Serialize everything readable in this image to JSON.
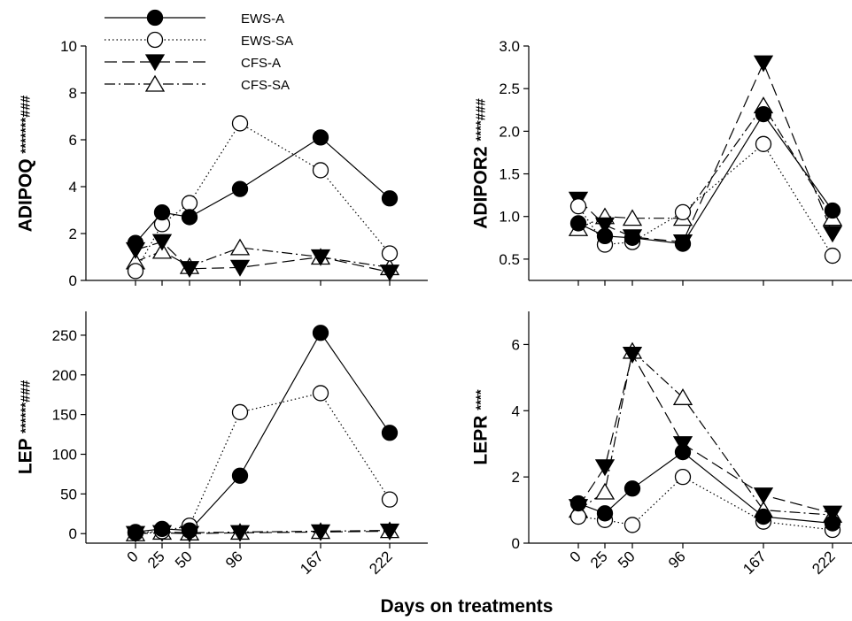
{
  "x_axis_label": "Days on treatments",
  "legend": [
    {
      "name": "EWS-A",
      "marker": "circle-filled",
      "dash": "solid"
    },
    {
      "name": "EWS-SA",
      "marker": "circle-open",
      "dash": "dotted"
    },
    {
      "name": "CFS-A",
      "marker": "triangle-down-filled",
      "dash": "dashed"
    },
    {
      "name": "CFS-SA",
      "marker": "triangle-up-open",
      "dash": "dashdot"
    }
  ],
  "chart_data": [
    {
      "type": "line",
      "ylabel": "ADIPOQ",
      "ylabel_stars": "*******###",
      "x": [
        0,
        25,
        50,
        96,
        167,
        222
      ],
      "ylim": [
        0,
        10
      ],
      "yticks": [
        0,
        2,
        4,
        6,
        8,
        10
      ],
      "xticks": [
        0,
        25,
        50,
        96,
        167,
        222
      ],
      "series": [
        {
          "name": "EWS-A",
          "values": [
            1.6,
            2.9,
            2.7,
            3.9,
            6.1,
            3.5
          ]
        },
        {
          "name": "EWS-SA",
          "values": [
            0.4,
            2.4,
            3.3,
            6.7,
            4.7,
            1.15
          ]
        },
        {
          "name": "CFS-A",
          "values": [
            1.3,
            1.65,
            0.5,
            0.55,
            1.0,
            0.35
          ]
        },
        {
          "name": "CFS-SA",
          "values": [
            0.8,
            1.25,
            0.6,
            1.4,
            1.0,
            0.55
          ]
        }
      ]
    },
    {
      "type": "line",
      "ylabel": "ADIPOR2",
      "ylabel_stars": "****###",
      "x": [
        0,
        25,
        50,
        96,
        167,
        222
      ],
      "ylim": [
        0.25,
        3.0
      ],
      "yticks": [
        0.5,
        1.0,
        1.5,
        2.0,
        2.5,
        3.0
      ],
      "ytick_labels": [
        "0.5",
        "1.0",
        "1.5",
        "2.0",
        "2.5",
        "3.0"
      ],
      "xticks": [
        0,
        25,
        50,
        96,
        167,
        222
      ],
      "series": [
        {
          "name": "EWS-A",
          "values": [
            0.92,
            0.77,
            0.75,
            0.68,
            2.2,
            1.07
          ]
        },
        {
          "name": "EWS-SA",
          "values": [
            1.12,
            0.67,
            0.7,
            1.05,
            1.85,
            0.54
          ]
        },
        {
          "name": "CFS-A",
          "values": [
            1.2,
            0.9,
            0.76,
            0.7,
            2.8,
            0.8
          ]
        },
        {
          "name": "CFS-SA",
          "values": [
            0.86,
            1.0,
            0.98,
            0.98,
            2.3,
            0.98
          ]
        }
      ]
    },
    {
      "type": "line",
      "ylabel": "LEP",
      "ylabel_stars": "******###",
      "x": [
        0,
        25,
        50,
        96,
        167,
        222
      ],
      "ylim": [
        -12,
        280
      ],
      "yticks": [
        0,
        50,
        100,
        150,
        200,
        250
      ],
      "xticks": [
        0,
        25,
        50,
        96,
        167,
        222
      ],
      "xtick_labels": [
        "0",
        "25",
        "50",
        "96",
        "167",
        "222"
      ],
      "series": [
        {
          "name": "EWS-A",
          "values": [
            2,
            6,
            4,
            73,
            253,
            127
          ]
        },
        {
          "name": "EWS-SA",
          "values": [
            1,
            3,
            10,
            153,
            177,
            43
          ]
        },
        {
          "name": "CFS-A",
          "values": [
            0,
            1,
            0,
            1,
            2,
            3
          ]
        },
        {
          "name": "CFS-SA",
          "values": [
            0,
            2,
            1,
            2,
            3,
            4
          ]
        }
      ]
    },
    {
      "type": "line",
      "ylabel": "LEPR",
      "ylabel_stars": "****",
      "x": [
        0,
        25,
        50,
        96,
        167,
        222
      ],
      "ylim": [
        0,
        7
      ],
      "yticks": [
        0,
        2,
        4,
        6
      ],
      "xticks": [
        0,
        25,
        50,
        96,
        167,
        222
      ],
      "xtick_labels": [
        "0",
        "25",
        "50",
        "96",
        "167",
        "222"
      ],
      "series": [
        {
          "name": "EWS-A",
          "values": [
            1.2,
            0.9,
            1.65,
            2.75,
            0.8,
            0.6
          ]
        },
        {
          "name": "EWS-SA",
          "values": [
            0.8,
            0.7,
            0.55,
            2.0,
            0.65,
            0.4
          ]
        },
        {
          "name": "CFS-A",
          "values": [
            1.1,
            2.3,
            5.7,
            3.0,
            1.45,
            0.9
          ]
        },
        {
          "name": "CFS-SA",
          "values": [
            1.0,
            1.55,
            5.8,
            4.4,
            1.0,
            0.85
          ]
        }
      ]
    }
  ]
}
